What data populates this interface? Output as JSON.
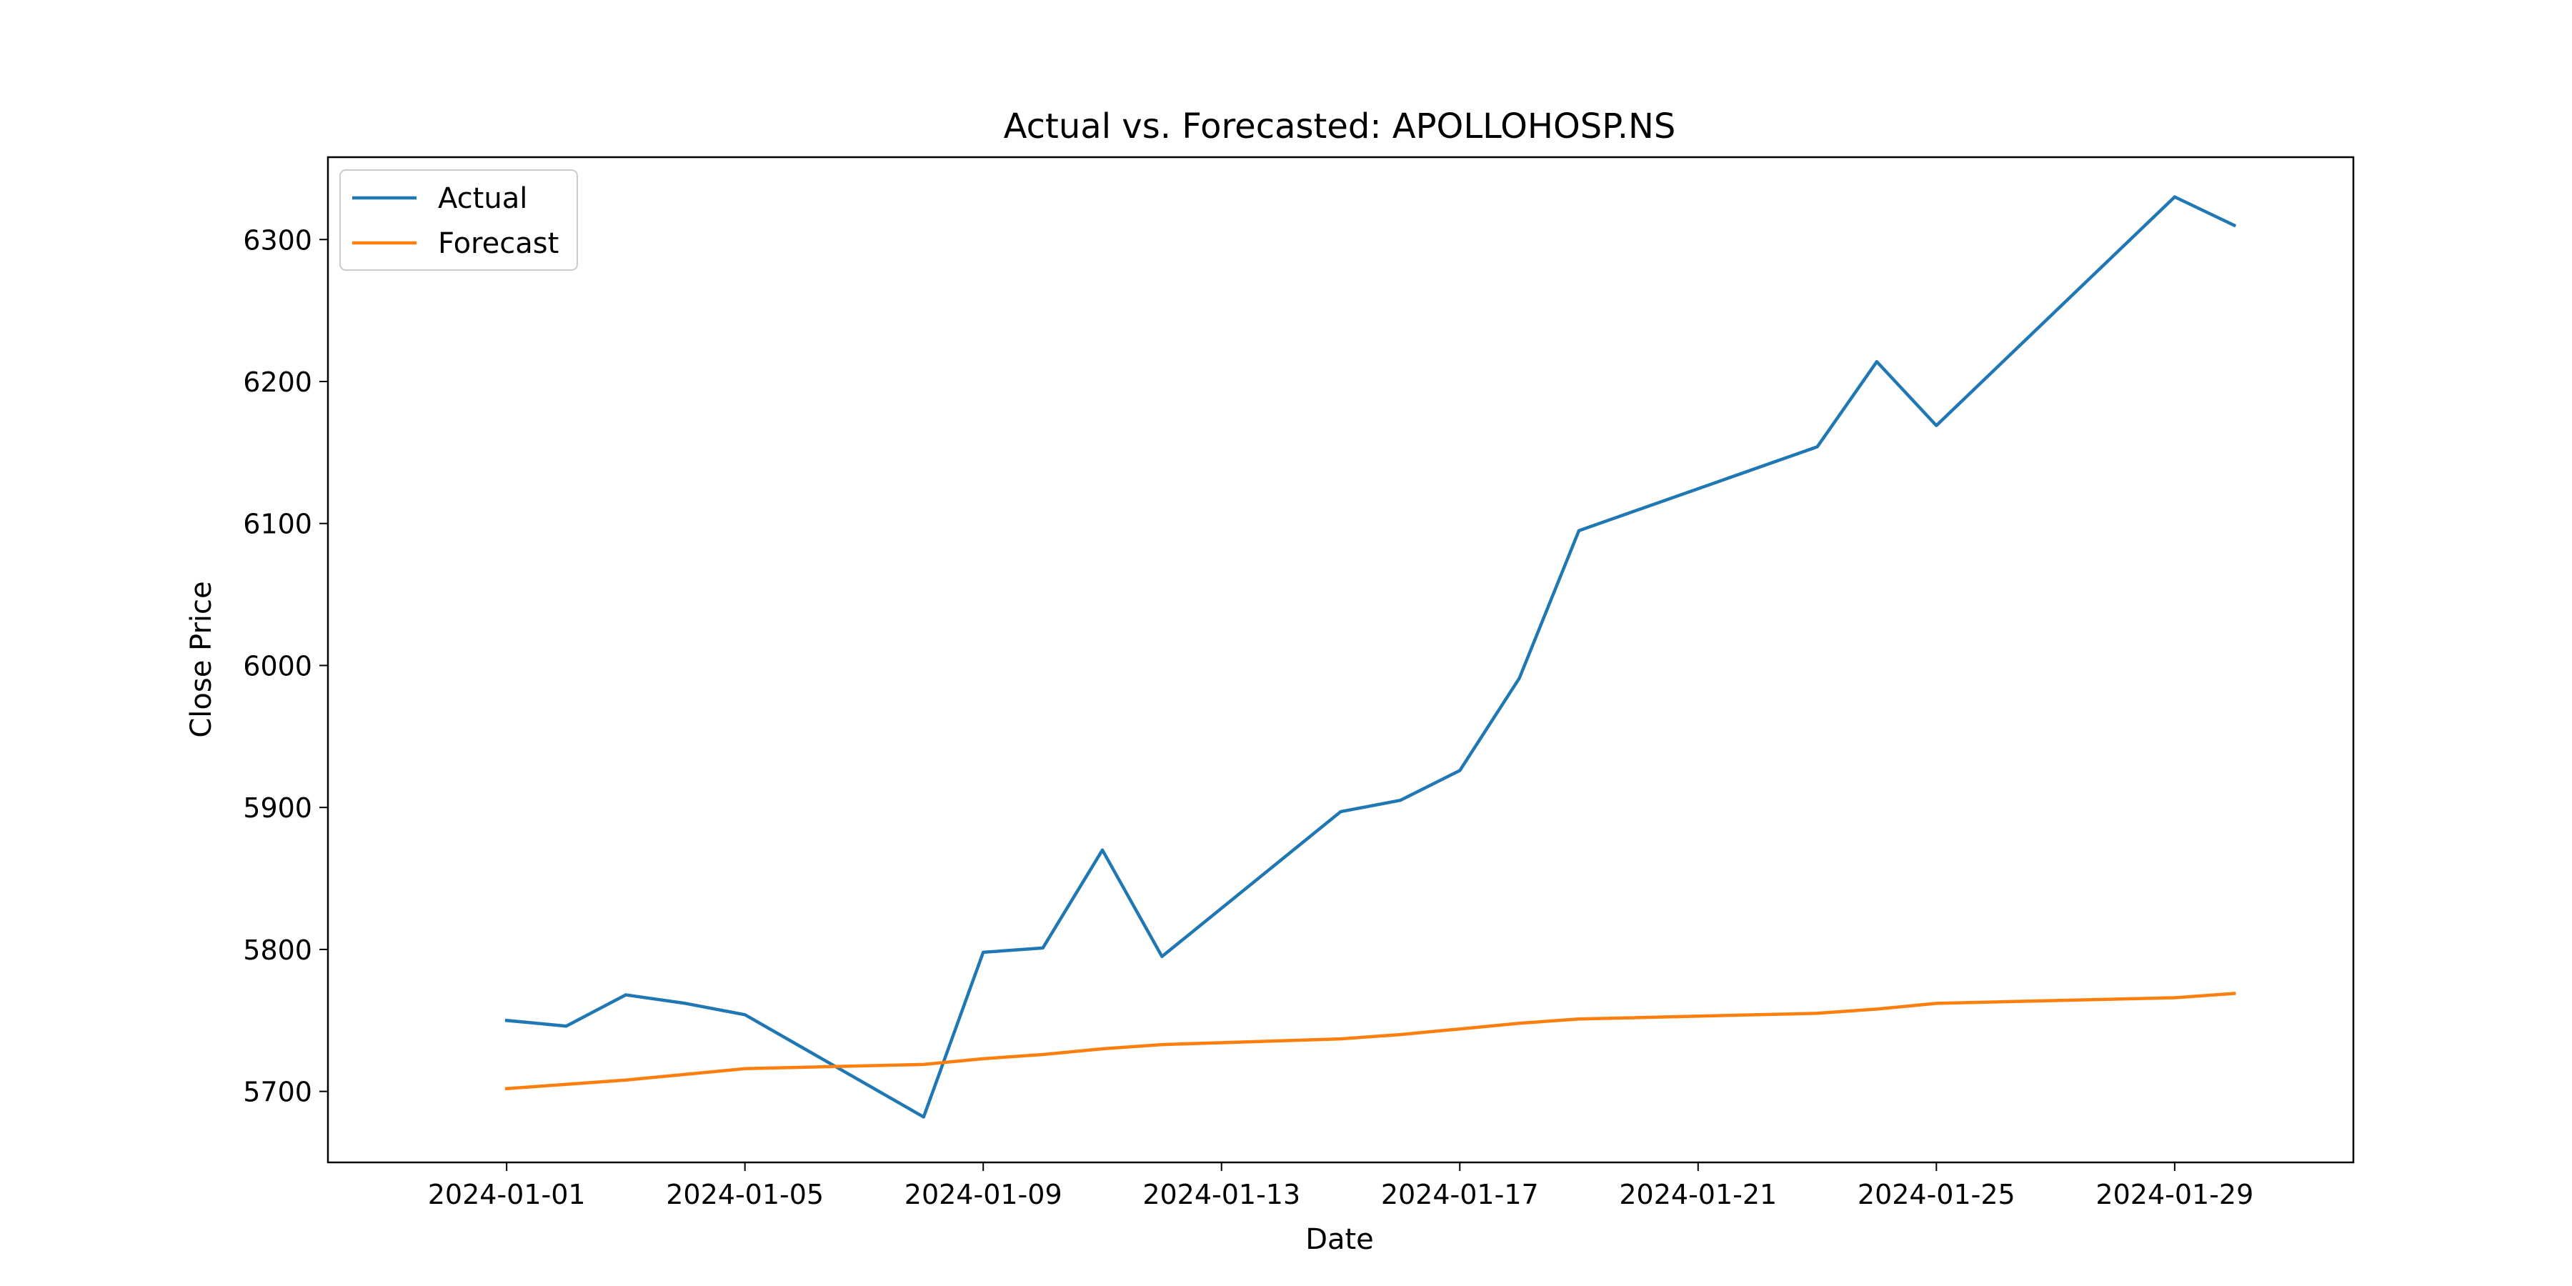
{
  "chart_data": {
    "type": "line",
    "title": "Actual vs. Forecasted: APOLLOHOSP.NS",
    "xlabel": "Date",
    "ylabel": "Close Price",
    "xlim": [
      "2023-12-29",
      "2024-02-01"
    ],
    "ylim": [
      5650,
      6358
    ],
    "x_ticks": [
      "2024-01-01",
      "2024-01-05",
      "2024-01-09",
      "2024-01-13",
      "2024-01-17",
      "2024-01-21",
      "2024-01-25",
      "2024-01-29"
    ],
    "y_ticks": [
      5700,
      5800,
      5900,
      6000,
      6100,
      6200,
      6300
    ],
    "grid": false,
    "legend_position": "top-left",
    "series": [
      {
        "name": "Actual",
        "color": "#1f77b4",
        "points": [
          [
            "2024-01-01",
            5750
          ],
          [
            "2024-01-02",
            5746
          ],
          [
            "2024-01-03",
            5768
          ],
          [
            "2024-01-04",
            5762
          ],
          [
            "2024-01-05",
            5754
          ],
          [
            "2024-01-08",
            5682
          ],
          [
            "2024-01-09",
            5798
          ],
          [
            "2024-01-10",
            5801
          ],
          [
            "2024-01-11",
            5870
          ],
          [
            "2024-01-12",
            5795
          ],
          [
            "2024-01-15",
            5897
          ],
          [
            "2024-01-16",
            5905
          ],
          [
            "2024-01-17",
            5926
          ],
          [
            "2024-01-18",
            5991
          ],
          [
            "2024-01-19",
            6095
          ],
          [
            "2024-01-23",
            6154
          ],
          [
            "2024-01-24",
            6214
          ],
          [
            "2024-01-25",
            6169
          ],
          [
            "2024-01-29",
            6330
          ],
          [
            "2024-01-30",
            6310
          ]
        ]
      },
      {
        "name": "Forecast",
        "color": "#ff7f0e",
        "points": [
          [
            "2024-01-01",
            5702
          ],
          [
            "2024-01-02",
            5705
          ],
          [
            "2024-01-03",
            5708
          ],
          [
            "2024-01-04",
            5712
          ],
          [
            "2024-01-05",
            5716
          ],
          [
            "2024-01-08",
            5719
          ],
          [
            "2024-01-09",
            5723
          ],
          [
            "2024-01-10",
            5726
          ],
          [
            "2024-01-11",
            5730
          ],
          [
            "2024-01-12",
            5733
          ],
          [
            "2024-01-15",
            5737
          ],
          [
            "2024-01-16",
            5740
          ],
          [
            "2024-01-17",
            5744
          ],
          [
            "2024-01-18",
            5748
          ],
          [
            "2024-01-19",
            5751
          ],
          [
            "2024-01-23",
            5755
          ],
          [
            "2024-01-24",
            5758
          ],
          [
            "2024-01-25",
            5762
          ],
          [
            "2024-01-29",
            5766
          ],
          [
            "2024-01-30",
            5769
          ]
        ]
      }
    ]
  }
}
